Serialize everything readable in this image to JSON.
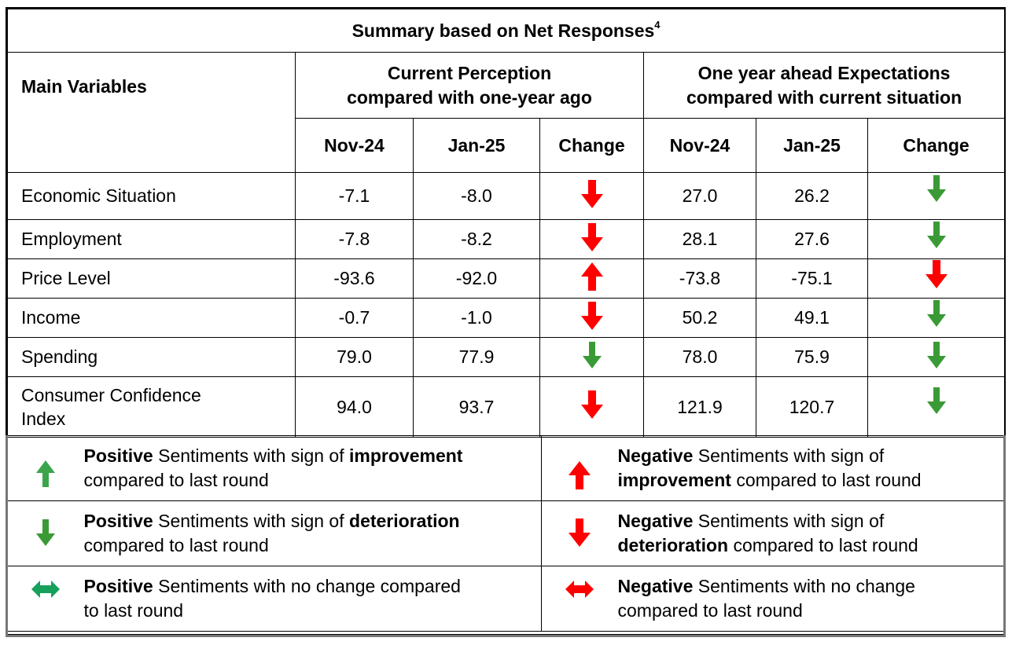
{
  "title": "Summary based on Net Responses",
  "title_footnote": "4",
  "header": {
    "main_variables": "Main Variables",
    "group1_line1": "Current Perception",
    "group1_line2": "compared with one-year ago",
    "group2_line1": "One year ahead Expectations",
    "group2_line2": "compared with current situation",
    "col_nov": "Nov-24",
    "col_jan": "Jan-25",
    "col_change": "Change"
  },
  "rows": [
    {
      "label": "Economic Situation",
      "cur_nov": "-7.1",
      "cur_jan": "-8.0",
      "cur_arrow": "red-down",
      "exp_nov": "27.0",
      "exp_jan": "26.2",
      "exp_arrow": "green-down"
    },
    {
      "label": "Employment",
      "cur_nov": "-7.8",
      "cur_jan": "-8.2",
      "cur_arrow": "red-down",
      "exp_nov": "28.1",
      "exp_jan": "27.6",
      "exp_arrow": "green-down"
    },
    {
      "label": "Price Level",
      "cur_nov": "-93.6",
      "cur_jan": "-92.0",
      "cur_arrow": "red-up",
      "exp_nov": "-73.8",
      "exp_jan": "-75.1",
      "exp_arrow": "red-down"
    },
    {
      "label": "Income",
      "cur_nov": "-0.7",
      "cur_jan": "-1.0",
      "cur_arrow": "red-down",
      "exp_nov": "50.2",
      "exp_jan": "49.1",
      "exp_arrow": "green-down"
    },
    {
      "label": "Spending",
      "cur_nov": "79.0",
      "cur_jan": "77.9",
      "cur_arrow": "green-down",
      "exp_nov": "78.0",
      "exp_jan": "75.9",
      "exp_arrow": "green-down"
    },
    {
      "label_line1": "Consumer Confidence",
      "label_line2": "Index",
      "cur_nov": "94.0",
      "cur_jan": "93.7",
      "cur_arrow": "red-down",
      "exp_nov": "121.9",
      "exp_jan": "120.7",
      "exp_arrow": "green-down"
    }
  ],
  "legend": {
    "pos_up": {
      "b1": "Positive",
      "t1": " Sentiments with sign of ",
      "b2": "improvement",
      "t2": "compared to last round"
    },
    "neg_up": {
      "b1": "Negative",
      "t1": " Sentiments with sign of",
      "b2": "improvement",
      "t2": " compared to last round"
    },
    "pos_down": {
      "b1": "Positive",
      "t1": " Sentiments with sign of ",
      "b2": "deterioration",
      "t2": "compared to last round"
    },
    "neg_down": {
      "b1": "Negative",
      "t1": " Sentiments with sign of",
      "b2": "deterioration",
      "t2": " compared to last round"
    },
    "pos_same": {
      "b1": "Positive",
      "t1": " Sentiments with no change compared",
      "t2": "to last round"
    },
    "neg_same": {
      "b1": "Negative",
      "t1": " Sentiments with no change",
      "t2": "compared to last round"
    }
  },
  "colors": {
    "red": "#ff0000",
    "green": "#3a9a35",
    "legend_green": "#3aa54a",
    "teal": "#16a05a"
  }
}
